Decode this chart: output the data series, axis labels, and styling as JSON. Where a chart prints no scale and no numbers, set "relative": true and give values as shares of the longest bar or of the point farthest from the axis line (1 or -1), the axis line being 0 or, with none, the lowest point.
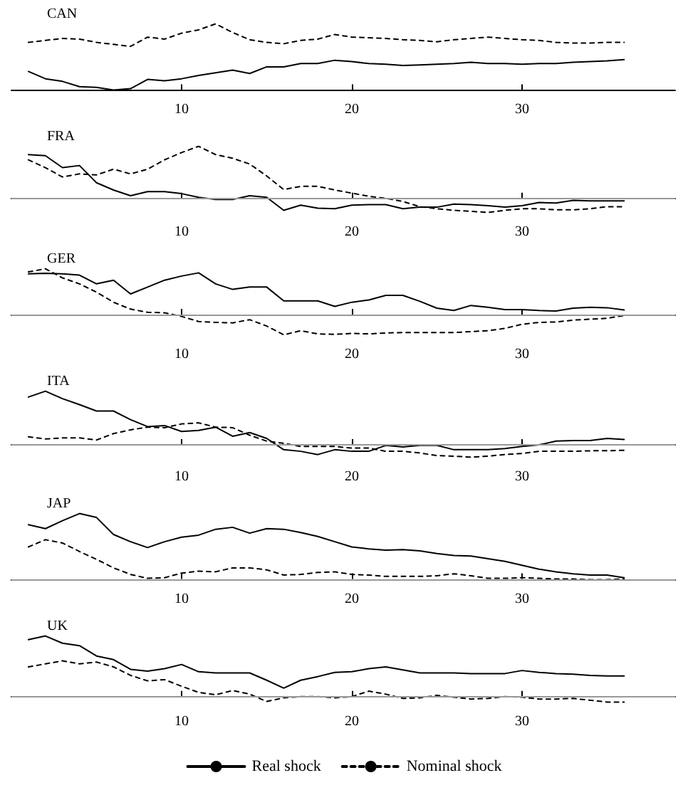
{
  "chart_data": [
    {
      "type": "line",
      "title": "CAN",
      "relative": true,
      "xlim": [
        0,
        39
      ],
      "xticks": [
        10,
        20,
        30
      ],
      "tick_labels": "x",
      "marker": "none",
      "legend": false,
      "x": [
        1,
        2,
        3,
        4,
        5,
        6,
        7,
        8,
        9,
        10,
        11,
        12,
        13,
        14,
        15,
        16,
        17,
        18,
        19,
        20,
        21,
        22,
        23,
        24,
        25,
        26,
        27,
        28,
        29,
        30,
        31,
        32,
        33,
        34,
        35,
        36
      ],
      "series": [
        {
          "color": "#000000",
          "line_style": "solid",
          "values": [
            0.28,
            0.17,
            0.13,
            0.05,
            0.04,
            0,
            0.02,
            0.16,
            0.14,
            0.17,
            0.22,
            0.26,
            0.3,
            0.25,
            0.35,
            0.35,
            0.4,
            0.4,
            0.45,
            0.43,
            0.4,
            0.39,
            0.37,
            0.38,
            0.39,
            0.4,
            0.42,
            0.4,
            0.4,
            0.39,
            0.4,
            0.4,
            0.42,
            0.43,
            0.44,
            0.46
          ]
        },
        {
          "color": "#000000",
          "line_style": "dashed",
          "values": [
            0.72,
            0.75,
            0.78,
            0.77,
            0.72,
            0.69,
            0.66,
            0.8,
            0.77,
            0.86,
            0.91,
            1.0,
            0.87,
            0.76,
            0.72,
            0.7,
            0.75,
            0.77,
            0.84,
            0.8,
            0.79,
            0.78,
            0.76,
            0.75,
            0.73,
            0.76,
            0.78,
            0.8,
            0.78,
            0.76,
            0.75,
            0.72,
            0.71,
            0.71,
            0.72,
            0.72
          ]
        }
      ]
    },
    {
      "type": "line",
      "title": "FRA",
      "relative": true,
      "xlim": [
        0,
        39
      ],
      "xticks": [
        10,
        20,
        30
      ],
      "tick_labels": "x",
      "marker": "none",
      "legend": false,
      "ref_lines": [
        {
          "axis": "y",
          "value": 0,
          "color": "#999999"
        }
      ],
      "x": [
        1,
        2,
        3,
        4,
        5,
        6,
        7,
        8,
        9,
        10,
        11,
        12,
        13,
        14,
        15,
        16,
        17,
        18,
        19,
        20,
        21,
        22,
        23,
        24,
        25,
        26,
        27,
        28,
        29,
        30,
        31,
        32,
        33,
        34,
        35,
        36
      ],
      "series": [
        {
          "color": "#000000",
          "line_style": "solid",
          "values": [
            0.84,
            0.82,
            0.59,
            0.63,
            0.3,
            0.16,
            0.05,
            0.13,
            0.13,
            0.09,
            0.02,
            -0.02,
            -0.02,
            0.05,
            0.02,
            -0.23,
            -0.13,
            -0.19,
            -0.2,
            -0.13,
            -0.12,
            -0.12,
            -0.2,
            -0.17,
            -0.17,
            -0.11,
            -0.12,
            -0.14,
            -0.17,
            -0.14,
            -0.08,
            -0.09,
            -0.04,
            -0.05,
            -0.05,
            -0.05
          ]
        },
        {
          "color": "#000000",
          "line_style": "dashed",
          "values": [
            0.74,
            0.59,
            0.41,
            0.47,
            0.45,
            0.56,
            0.47,
            0.56,
            0.74,
            0.88,
            1.0,
            0.84,
            0.77,
            0.66,
            0.43,
            0.17,
            0.23,
            0.23,
            0.16,
            0.1,
            0.04,
            0,
            -0.06,
            -0.16,
            -0.2,
            -0.23,
            -0.25,
            -0.27,
            -0.23,
            -0.2,
            -0.2,
            -0.22,
            -0.22,
            -0.2,
            -0.16,
            -0.16
          ]
        }
      ]
    },
    {
      "type": "line",
      "title": "GER",
      "relative": true,
      "xlim": [
        0,
        39
      ],
      "xticks": [
        10,
        20,
        30
      ],
      "tick_labels": "x",
      "marker": "none",
      "legend": false,
      "ref_lines": [
        {
          "axis": "y",
          "value": 0,
          "color": "#999999"
        }
      ],
      "x": [
        1,
        2,
        3,
        4,
        5,
        6,
        7,
        8,
        9,
        10,
        11,
        12,
        13,
        14,
        15,
        16,
        17,
        18,
        19,
        20,
        21,
        22,
        23,
        24,
        25,
        26,
        27,
        28,
        29,
        30,
        31,
        32,
        33,
        34,
        35,
        36
      ],
      "series": [
        {
          "color": "#000000",
          "line_style": "solid",
          "values": [
            0.89,
            0.9,
            0.89,
            0.86,
            0.67,
            0.75,
            0.45,
            0.6,
            0.75,
            0.84,
            0.91,
            0.67,
            0.55,
            0.6,
            0.6,
            0.3,
            0.3,
            0.3,
            0.18,
            0.27,
            0.32,
            0.42,
            0.42,
            0.29,
            0.14,
            0.09,
            0.2,
            0.16,
            0.11,
            0.11,
            0.09,
            0.08,
            0.14,
            0.16,
            0.15,
            0.1
          ]
        },
        {
          "color": "#000000",
          "line_style": "dashed",
          "values": [
            0.93,
            1.0,
            0.8,
            0.67,
            0.49,
            0.27,
            0.12,
            0.05,
            0.04,
            -0.04,
            -0.15,
            -0.17,
            -0.18,
            -0.11,
            -0.25,
            -0.44,
            -0.35,
            -0.42,
            -0.43,
            -0.41,
            -0.42,
            -0.4,
            -0.39,
            -0.39,
            -0.39,
            -0.39,
            -0.37,
            -0.35,
            -0.3,
            -0.21,
            -0.17,
            -0.16,
            -0.12,
            -0.1,
            -0.08,
            -0.02
          ]
        }
      ]
    },
    {
      "type": "line",
      "title": "ITA",
      "relative": true,
      "xlim": [
        0,
        39
      ],
      "xticks": [
        10,
        20,
        30
      ],
      "tick_labels": "x",
      "marker": "none",
      "legend": false,
      "ref_lines": [
        {
          "axis": "y",
          "value": 0,
          "color": "#999999"
        }
      ],
      "x": [
        1,
        2,
        3,
        4,
        5,
        6,
        7,
        8,
        9,
        10,
        11,
        12,
        13,
        14,
        15,
        16,
        17,
        18,
        19,
        20,
        21,
        22,
        23,
        24,
        25,
        26,
        27,
        28,
        29,
        30,
        31,
        32,
        33,
        34,
        35,
        36
      ],
      "series": [
        {
          "color": "#000000",
          "line_style": "solid",
          "values": [
            0.89,
            1.0,
            0.86,
            0.75,
            0.63,
            0.63,
            0.47,
            0.34,
            0.36,
            0.25,
            0.27,
            0.33,
            0.16,
            0.23,
            0.12,
            -0.09,
            -0.12,
            -0.18,
            -0.09,
            -0.12,
            -0.12,
            -0.01,
            -0.04,
            -0.01,
            -0.01,
            -0.09,
            -0.09,
            -0.09,
            -0.07,
            -0.03,
            0,
            0.07,
            0.08,
            0.08,
            0.12,
            0.1
          ]
        },
        {
          "color": "#000000",
          "line_style": "dashed",
          "values": [
            0.15,
            0.11,
            0.13,
            0.13,
            0.09,
            0.21,
            0.28,
            0.33,
            0.32,
            0.39,
            0.41,
            0.33,
            0.32,
            0.18,
            0.07,
            0.03,
            -0.03,
            -0.03,
            -0.03,
            -0.06,
            -0.06,
            -0.12,
            -0.12,
            -0.15,
            -0.2,
            -0.21,
            -0.23,
            -0.21,
            -0.18,
            -0.16,
            -0.12,
            -0.12,
            -0.12,
            -0.11,
            -0.11,
            -0.1
          ]
        }
      ]
    },
    {
      "type": "line",
      "title": "JAP",
      "relative": true,
      "xlim": [
        0,
        39
      ],
      "xticks": [
        10,
        20,
        30
      ],
      "tick_labels": "x",
      "marker": "none",
      "legend": false,
      "ref_lines": [
        {
          "axis": "y",
          "value": 0,
          "color": "#999999"
        }
      ],
      "x": [
        1,
        2,
        3,
        4,
        5,
        6,
        7,
        8,
        9,
        10,
        11,
        12,
        13,
        14,
        15,
        16,
        17,
        18,
        19,
        20,
        21,
        22,
        23,
        24,
        25,
        26,
        27,
        28,
        29,
        30,
        31,
        32,
        33,
        34,
        35,
        36
      ],
      "series": [
        {
          "color": "#000000",
          "line_style": "solid",
          "values": [
            0.83,
            0.77,
            0.89,
            1.0,
            0.94,
            0.68,
            0.57,
            0.48,
            0.57,
            0.64,
            0.67,
            0.76,
            0.79,
            0.7,
            0.77,
            0.76,
            0.71,
            0.65,
            0.57,
            0.49,
            0.46,
            0.44,
            0.45,
            0.43,
            0.39,
            0.36,
            0.35,
            0.31,
            0.27,
            0.21,
            0.15,
            0.11,
            0.08,
            0.06,
            0.06,
            0.02
          ]
        },
        {
          "color": "#000000",
          "line_style": "dashed",
          "values": [
            0.49,
            0.6,
            0.55,
            0.42,
            0.3,
            0.17,
            0.07,
            0.01,
            0.02,
            0.09,
            0.12,
            0.11,
            0.17,
            0.17,
            0.14,
            0.06,
            0.07,
            0.1,
            0.11,
            0.07,
            0.06,
            0.04,
            0.04,
            0.04,
            0.05,
            0.08,
            0.05,
            0.01,
            0.01,
            0.02,
            0.01,
            0,
            0,
            -0.01,
            -0.01,
            0
          ]
        }
      ]
    },
    {
      "type": "line",
      "title": "UK",
      "relative": true,
      "xlim": [
        0,
        39
      ],
      "xticks": [
        10,
        20,
        30
      ],
      "tick_labels": "x",
      "marker": "none",
      "legend": "bottom",
      "ref_lines": [
        {
          "axis": "y",
          "value": 0,
          "color": "#999999"
        }
      ],
      "x": [
        1,
        2,
        3,
        4,
        5,
        6,
        7,
        8,
        9,
        10,
        11,
        12,
        13,
        14,
        15,
        16,
        17,
        18,
        19,
        20,
        21,
        22,
        23,
        24,
        25,
        26,
        27,
        28,
        29,
        30,
        31,
        32,
        33,
        34,
        35,
        36
      ],
      "series": [
        {
          "name": "Real shock",
          "color": "#000000",
          "line_style": "solid",
          "values": [
            0.94,
            1.0,
            0.88,
            0.84,
            0.67,
            0.61,
            0.45,
            0.42,
            0.46,
            0.53,
            0.41,
            0.39,
            0.39,
            0.39,
            0.27,
            0.14,
            0.27,
            0.33,
            0.4,
            0.41,
            0.46,
            0.49,
            0.44,
            0.39,
            0.39,
            0.39,
            0.38,
            0.38,
            0.38,
            0.43,
            0.4,
            0.38,
            0.37,
            0.35,
            0.34,
            0.34
          ]
        },
        {
          "name": "Nominal shock",
          "color": "#000000",
          "line_style": "dashed",
          "values": [
            0.49,
            0.54,
            0.59,
            0.54,
            0.57,
            0.49,
            0.35,
            0.26,
            0.28,
            0.17,
            0.07,
            0.03,
            0.1,
            0.04,
            -0.08,
            -0.02,
            0,
            0,
            -0.02,
            0,
            0.09,
            0.04,
            -0.03,
            -0.02,
            0.02,
            -0.01,
            -0.04,
            -0.03,
            0,
            -0.01,
            -0.04,
            -0.04,
            -0.03,
            -0.06,
            -0.09,
            -0.09
          ]
        }
      ]
    }
  ]
}
